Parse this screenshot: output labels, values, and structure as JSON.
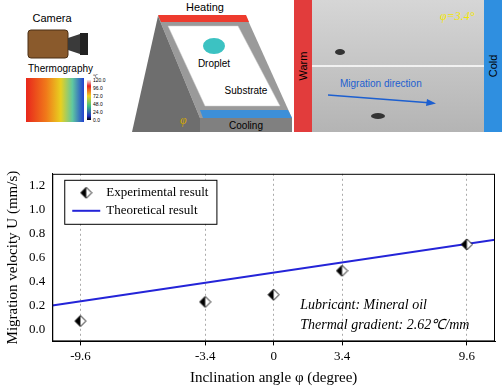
{
  "chart_data": {
    "type": "scatter",
    "xlabel": "Inclination angle φ (degree)",
    "ylabel": "Migration velocity U (mm/s)",
    "series": [
      {
        "name": "Experimental result",
        "type": "scatter",
        "marker": "half_diamond",
        "color": "#000000",
        "x": [
          -9.6,
          -3.4,
          0,
          3.4,
          9.6
        ],
        "values": [
          0.07,
          0.23,
          0.29,
          0.49,
          0.71
        ]
      },
      {
        "name": "Theoretical result",
        "type": "line",
        "line_style": "solid",
        "color": "#2424d8",
        "x": [
          -11,
          11
        ],
        "values": [
          0.2,
          0.75
        ]
      }
    ],
    "xlim": [
      -11,
      11
    ],
    "xticks": [
      -9.6,
      -3.4,
      0,
      3.4,
      9.6
    ],
    "ylim": [
      -0.1,
      1.3
    ],
    "yticks": [
      {
        "value": 0,
        "label": "0.0"
      },
      {
        "value": 0.2,
        "label": "0.2"
      },
      {
        "value": 0.4,
        "label": "0.4"
      },
      {
        "value": 0.6,
        "label": "0.6"
      },
      {
        "value": 0.8,
        "label": "0.8"
      },
      {
        "value": 1.0,
        "label": "1.0"
      },
      {
        "value": 1.2,
        "label": "1.2"
      }
    ],
    "grid": true,
    "legend": "top-left",
    "annotations": [
      "Lubricant: Mineral oil",
      "Thermal gradient: 2.62℃/mm"
    ]
  },
  "diagram": {
    "labels": {
      "heating": "Heating",
      "droplet": "Droplet",
      "substrate": "Substrate",
      "cooling": "Cooling",
      "camera": "Camera",
      "thermography": "Thermography",
      "angle": "φ"
    },
    "colorbar": {
      "unit": "℃",
      "range": [
        0,
        120
      ],
      "ticks": [
        {
          "value": 120,
          "label": "120.0"
        },
        {
          "value": 96,
          "label": "96.0"
        },
        {
          "value": 72,
          "label": "72.0"
        },
        {
          "value": 48,
          "label": "48.0"
        },
        {
          "value": 24,
          "label": "24.0"
        },
        {
          "value": 0,
          "label": "0.0"
        }
      ]
    },
    "photo": {
      "warm": "Warm",
      "cold": "Cold",
      "angle_label": "φ=3.4°",
      "arrow_label": "Migration direction"
    }
  }
}
